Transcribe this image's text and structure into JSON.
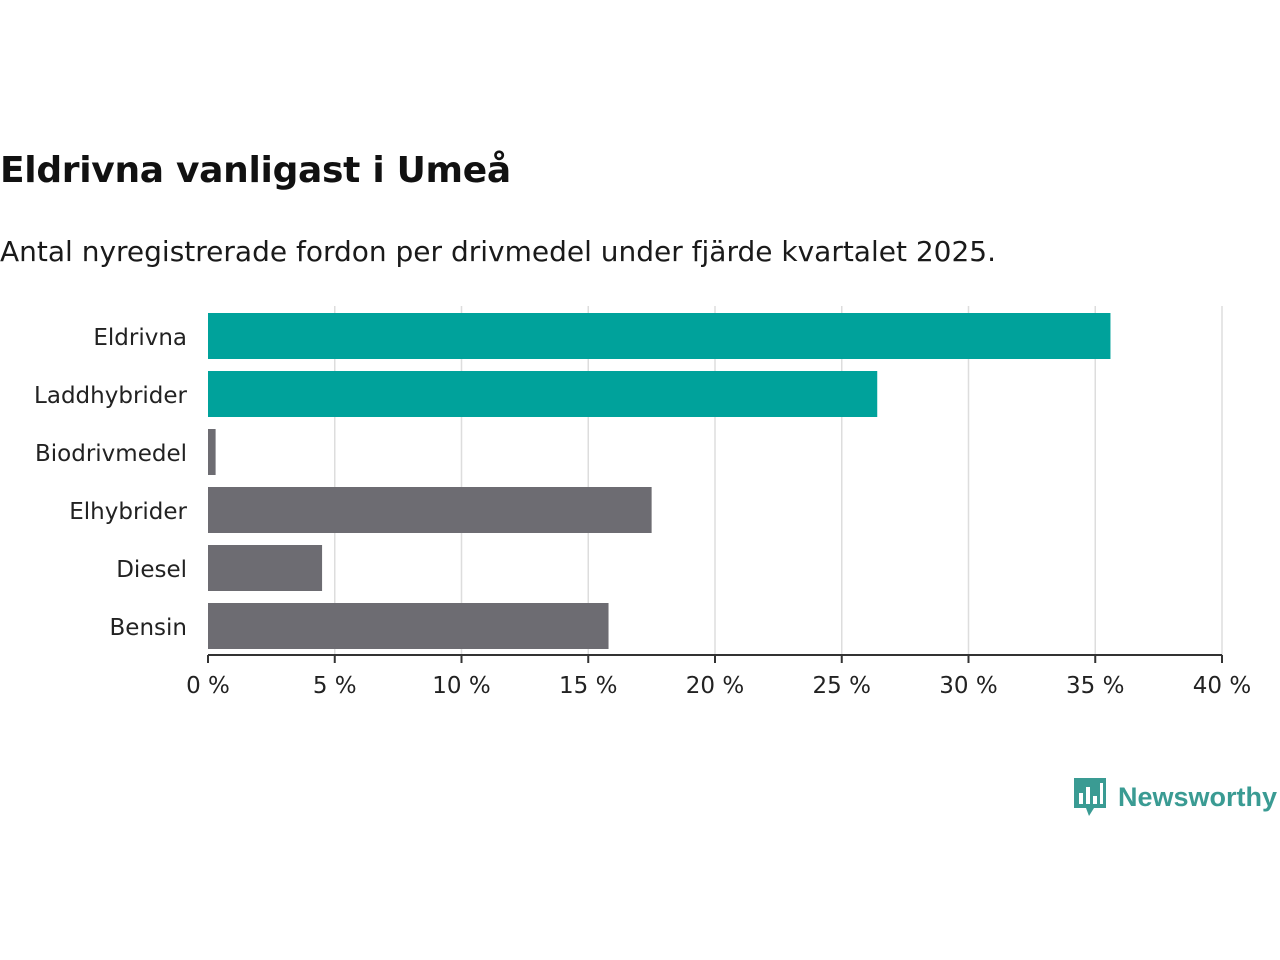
{
  "colors": {
    "highlight": "#00a29b",
    "default": "#6d6c72",
    "grid": "#dddddd",
    "axis": "#333333",
    "logo": "#3a9b93"
  },
  "chart_data": {
    "type": "bar",
    "orientation": "horizontal",
    "title": "Eldrivna vanligast i Umeå",
    "subtitle": "Antal nyregistrerade fordon per drivmedel under fjärde kvartalet 2025.",
    "categories": [
      "Eldrivna",
      "Laddhybrider",
      "Biodrivmedel",
      "Elhybrider",
      "Diesel",
      "Bensin"
    ],
    "values": [
      35.6,
      26.4,
      0.3,
      17.5,
      4.5,
      15.8
    ],
    "highlighted": [
      true,
      true,
      false,
      false,
      false,
      false
    ],
    "xlim": [
      0,
      40
    ],
    "xticks": [
      0,
      5,
      10,
      15,
      20,
      25,
      30,
      35,
      40
    ],
    "xtick_labels": [
      "0 %",
      "5 %",
      "10 %",
      "15 %",
      "20 %",
      "25 %",
      "30 %",
      "35 %",
      "40 %"
    ],
    "xlabel": "",
    "ylabel": "",
    "grid": true,
    "legend": "none"
  },
  "logo": {
    "text": "Newsworthy",
    "icon": "bar-chart-speech-bubble-icon"
  }
}
